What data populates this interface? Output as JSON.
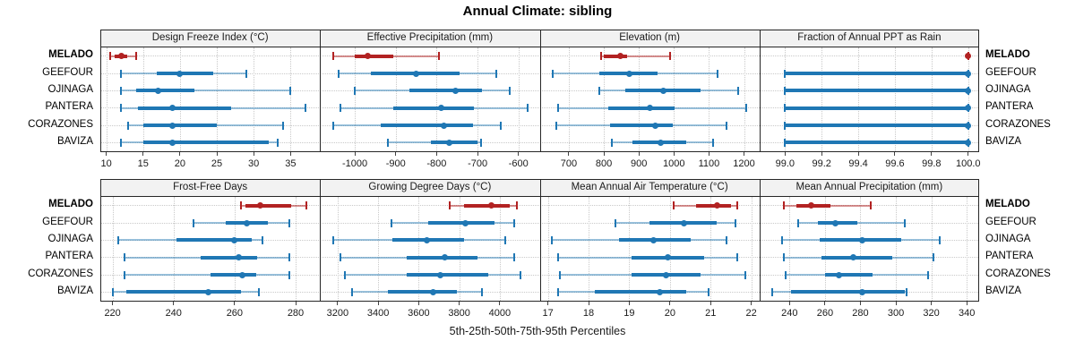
{
  "title": "Annual Climate: sibling",
  "footer": "5th-25th-50th-75th-95th Percentiles",
  "sites": [
    "MELADO",
    "GEEFOUR",
    "OJINAGA",
    "PANTERA",
    "CORAZONES",
    "BAVIZA"
  ],
  "highlight_site": "MELADO",
  "colors": {
    "highlight": "#B22222",
    "highlight_light": "rgba(178,34,34,0.5)",
    "normal": "#1F77B4",
    "normal_light": "rgba(31,119,180,0.45)",
    "header_bg": "#F2F2F2",
    "border": "#262626",
    "grid": "#C9C9C9",
    "tick": "#444444"
  },
  "chart_data": {
    "type": "dotplot-percentile-trellis",
    "percentiles": [
      5,
      25,
      50,
      75,
      95
    ],
    "legend_note": "red = highlighted site MELADO, blue = comparison sites",
    "panels": [
      {
        "title": "Design Freeze Index (°C)",
        "domain": [
          9.2,
          39.0
        ],
        "tick_values": [
          10,
          15,
          20,
          25,
          30,
          35
        ],
        "tick_labels": [
          "10",
          "15",
          "20",
          "25",
          "30",
          "35"
        ],
        "series": [
          {
            "site": "MELADO",
            "values": [
              10.5,
              11.1,
              12.0,
              12.9,
              14.0
            ]
          },
          {
            "site": "GEEFOUR",
            "values": [
              12.0,
              16.9,
              20.0,
              24.5,
              29.0
            ]
          },
          {
            "site": "OJINAGA",
            "values": [
              12.0,
              14.0,
              17.0,
              22.0,
              35.0
            ]
          },
          {
            "site": "PANTERA",
            "values": [
              12.0,
              14.3,
              19.0,
              27.0,
              37.0
            ]
          },
          {
            "site": "CORAZONES",
            "values": [
              13.0,
              15.0,
              19.0,
              25.0,
              34.0
            ]
          },
          {
            "site": "BAVIZA",
            "values": [
              12.0,
              15.0,
              19.0,
              32.0,
              33.3
            ]
          }
        ]
      },
      {
        "title": "Effective Precipitation (mm)",
        "domain": [
          -1085,
          -548
        ],
        "tick_values": [
          -1000,
          -900,
          -800,
          -700,
          -600
        ],
        "tick_labels": [
          "-1000",
          "-900",
          "-800",
          "-700",
          "-600"
        ],
        "series": [
          {
            "site": "MELADO",
            "values": [
              -1053,
              -1000,
              -968,
              -905,
              -794
            ]
          },
          {
            "site": "GEEFOUR",
            "values": [
              -1040,
              -960,
              -850,
              -744,
              -655
            ]
          },
          {
            "site": "OJINAGA",
            "values": [
              -1000,
              -866,
              -753,
              -690,
              -622
            ]
          },
          {
            "site": "PANTERA",
            "values": [
              -1036,
              -907,
              -788,
              -709,
              -578
            ]
          },
          {
            "site": "CORAZONES",
            "values": [
              -1053,
              -936,
              -783,
              -711,
              -644
            ]
          },
          {
            "site": "BAVIZA",
            "values": [
              -920,
              -815,
              -770,
              -700,
              -692
            ]
          }
        ]
      },
      {
        "title": "Elevation (m)",
        "domain": [
          617,
          1244
        ],
        "tick_values": [
          700,
          800,
          900,
          1000,
          1100,
          1200
        ],
        "tick_labels": [
          "700",
          "800",
          "900",
          "1000",
          "1100",
          "1200"
        ],
        "series": [
          {
            "site": "MELADO",
            "values": [
              793,
              801,
              846,
              866,
              988
            ]
          },
          {
            "site": "GEEFOUR",
            "values": [
              653,
              788,
              873,
              954,
              1124
            ]
          },
          {
            "site": "OJINAGA",
            "values": [
              788,
              860,
              969,
              1076,
              1184
            ]
          },
          {
            "site": "PANTERA",
            "values": [
              670,
              813,
              931,
              1001,
              1206
            ]
          },
          {
            "site": "CORAZONES",
            "values": [
              664,
              818,
              946,
              997,
              1150
            ]
          },
          {
            "site": "BAVIZA",
            "values": [
              822,
              882,
              963,
              1035,
              1112
            ]
          }
        ]
      },
      {
        "title": "Fraction of Annual PPT as Rain",
        "domain": [
          98.86,
          100.06
        ],
        "tick_values": [
          99.0,
          99.2,
          99.4,
          99.6,
          99.8,
          100.0
        ],
        "tick_labels": [
          "99.0",
          "99.2",
          "99.4",
          "99.6",
          "99.8",
          "100.0"
        ],
        "series": [
          {
            "site": "MELADO",
            "values": [
              100.0,
              100.0,
              100.0,
              100.0,
              100.0
            ]
          },
          {
            "site": "GEEFOUR",
            "values": [
              99.0,
              99.0,
              100.0,
              100.0,
              100.0
            ]
          },
          {
            "site": "OJINAGA",
            "values": [
              99.0,
              99.0,
              100.0,
              100.0,
              100.0
            ]
          },
          {
            "site": "PANTERA",
            "values": [
              99.0,
              99.0,
              100.0,
              100.0,
              100.0
            ]
          },
          {
            "site": "CORAZONES",
            "values": [
              99.0,
              99.0,
              100.0,
              100.0,
              100.0
            ]
          },
          {
            "site": "BAVIZA",
            "values": [
              99.0,
              99.0,
              100.0,
              100.0,
              100.0
            ]
          }
        ]
      },
      {
        "title": "Frost-Free Days",
        "domain": [
          216,
          288
        ],
        "tick_values": [
          220,
          240,
          260,
          280
        ],
        "tick_labels": [
          "220",
          "240",
          "260",
          "280"
        ],
        "series": [
          {
            "site": "MELADO",
            "values": [
              262,
              263.5,
              268.5,
              278.5,
              283.5
            ]
          },
          {
            "site": "GEEFOUR",
            "values": [
              246.5,
              257,
              264,
              271,
              278
            ]
          },
          {
            "site": "OJINAGA",
            "values": [
              222,
              241,
              260,
              265.5,
              269
            ]
          },
          {
            "site": "PANTERA",
            "values": [
              224,
              249,
              261.5,
              267.5,
              278
            ]
          },
          {
            "site": "CORAZONES",
            "values": [
              224,
              252,
              262.5,
              267,
              278
            ]
          },
          {
            "site": "BAVIZA",
            "values": [
              220,
              224.5,
              251.5,
              262,
              268
            ]
          }
        ]
      },
      {
        "title": "Growing Degree Days (°C)",
        "domain": [
          3113,
          4197
        ],
        "tick_values": [
          3200,
          3400,
          3600,
          3800,
          4000
        ],
        "tick_labels": [
          "3200",
          "3400",
          "3600",
          "3800",
          "4000"
        ],
        "series": [
          {
            "site": "MELADO",
            "values": [
              3755,
              3825,
              3960,
              4050,
              4085
            ]
          },
          {
            "site": "GEEFOUR",
            "values": [
              3465,
              3645,
              3830,
              3975,
              4070
            ]
          },
          {
            "site": "OJINAGA",
            "values": [
              3180,
              3470,
              3640,
              3825,
              4025
            ]
          },
          {
            "site": "PANTERA",
            "values": [
              3215,
              3540,
              3730,
              3890,
              4070
            ]
          },
          {
            "site": "CORAZONES",
            "values": [
              3235,
              3540,
              3705,
              3945,
              4100
            ]
          },
          {
            "site": "BAVIZA",
            "values": [
              3270,
              3450,
              3670,
              3790,
              3910
            ]
          }
        ]
      },
      {
        "title": "Mean Annual Air Temperature (°C)",
        "domain": [
          16.8,
          22.2
        ],
        "tick_values": [
          17,
          18,
          19,
          20,
          21,
          22
        ],
        "tick_labels": [
          "17",
          "18",
          "19",
          "20",
          "21",
          "22"
        ],
        "series": [
          {
            "site": "MELADO",
            "values": [
              20.1,
              20.65,
              21.15,
              21.5,
              21.65
            ]
          },
          {
            "site": "GEEFOUR",
            "values": [
              18.65,
              19.5,
              20.35,
              21.15,
              21.6
            ]
          },
          {
            "site": "OJINAGA",
            "values": [
              17.1,
              18.75,
              19.6,
              20.5,
              21.4
            ]
          },
          {
            "site": "PANTERA",
            "values": [
              17.25,
              19.05,
              19.95,
              20.85,
              21.65
            ]
          },
          {
            "site": "CORAZONES",
            "values": [
              17.3,
              19.05,
              19.9,
              20.75,
              21.85
            ]
          },
          {
            "site": "BAVIZA",
            "values": [
              17.25,
              18.15,
              19.75,
              20.4,
              20.95
            ]
          }
        ]
      },
      {
        "title": "Mean Annual Precipitation (mm)",
        "domain": [
          223,
          347
        ],
        "tick_values": [
          240,
          260,
          280,
          300,
          320,
          340
        ],
        "tick_labels": [
          "240",
          "260",
          "280",
          "300",
          "320",
          "340"
        ],
        "series": [
          {
            "site": "MELADO",
            "values": [
              237,
              244,
              252,
              263,
              286
            ]
          },
          {
            "site": "GEEFOUR",
            "values": [
              245,
              256,
              266,
              278,
              305
            ]
          },
          {
            "site": "OJINAGA",
            "values": [
              236,
              257,
              281,
              303,
              325
            ]
          },
          {
            "site": "PANTERA",
            "values": [
              237,
              258,
              276,
              298,
              321
            ]
          },
          {
            "site": "CORAZONES",
            "values": [
              238,
              260,
              268,
              287,
              318
            ]
          },
          {
            "site": "BAVIZA",
            "values": [
              230,
              241,
              281,
              305,
              306
            ]
          }
        ]
      }
    ]
  }
}
